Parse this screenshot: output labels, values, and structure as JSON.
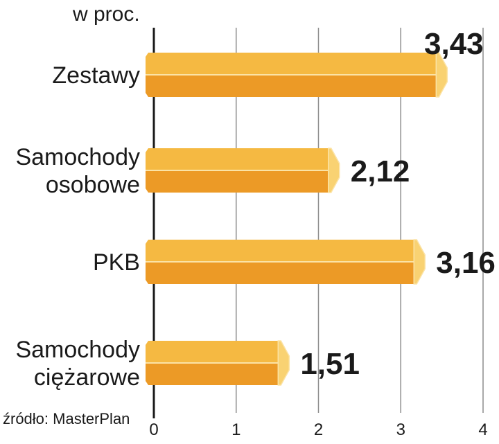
{
  "chart_data": {
    "type": "bar",
    "orientation": "horizontal",
    "unit_label": "w proc.",
    "categories": [
      [
        "Zestawy"
      ],
      [
        "Samochody",
        "osobowe"
      ],
      [
        "PKB"
      ],
      [
        "Samochody",
        "ciężarowe"
      ]
    ],
    "values": [
      3.43,
      2.12,
      3.16,
      1.51
    ],
    "value_labels": [
      "3,43",
      "2,12",
      "3,16",
      "1,51"
    ],
    "xlim": [
      0,
      4
    ],
    "x_ticks": [
      0,
      1,
      2,
      3,
      4
    ],
    "x_tick_labels": [
      "0",
      "1",
      "2",
      "3",
      "4"
    ],
    "grid": true,
    "source": "źródło: MasterPlan",
    "colors": {
      "bar_top": "#f5b942",
      "bar_bottom": "#ec9a26",
      "bar_cap": "#f9d272",
      "bar_edge": "#fbe3a6",
      "grid": "#8c8c8c",
      "axis": "#1a1a1a"
    }
  }
}
